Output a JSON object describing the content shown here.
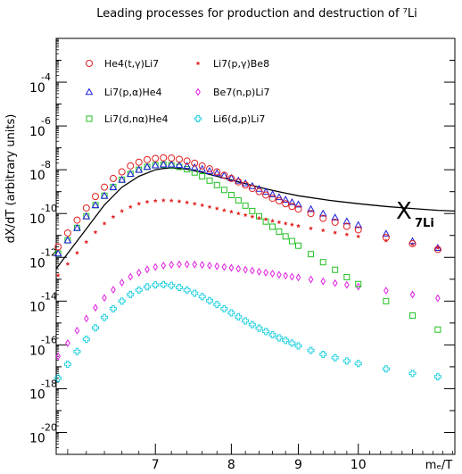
{
  "chart_data": {
    "type": "scatter",
    "title": "Leading processes for production and destruction of ⁷Li",
    "xlabel": "mₑ/T",
    "ylabel": "dX/dT (arbitrary units)",
    "x_scale": "log",
    "y_scale": "log",
    "xlim": [
      5.88,
      11.85
    ],
    "ylim": [
      1e-21,
      0.01
    ],
    "x_ticks": [
      {
        "value": 7,
        "label": "7"
      },
      {
        "value": 8,
        "label": "8"
      },
      {
        "value": 9,
        "label": "9"
      },
      {
        "value": 10,
        "label": "10"
      }
    ],
    "y_ticks": [
      {
        "value": 0.0001,
        "base": "10",
        "exp": "-4"
      },
      {
        "value": 1e-06,
        "base": "10",
        "exp": "-6"
      },
      {
        "value": 1e-08,
        "base": "10",
        "exp": "-8"
      },
      {
        "value": 1e-10,
        "base": "10",
        "exp": "-10"
      },
      {
        "value": 1e-12,
        "base": "10",
        "exp": "-12"
      },
      {
        "value": 1e-14,
        "base": "10",
        "exp": "-14"
      },
      {
        "value": 1e-16,
        "base": "10",
        "exp": "-16"
      },
      {
        "value": 1e-18,
        "base": "10",
        "exp": "-18"
      },
      {
        "value": 1e-20,
        "base": "10",
        "exp": "-20"
      }
    ],
    "grid": false,
    "legend_position": "top",
    "annotation": {
      "main": "X",
      "sub": "7Li"
    },
    "series": [
      {
        "name": "He4(t,γ)Li7",
        "marker": "circle",
        "color": "#e02020",
        "x": [
          5.9,
          6.0,
          6.1,
          6.2,
          6.3,
          6.4,
          6.5,
          6.6,
          6.7,
          6.8,
          6.9,
          7.0,
          7.1,
          7.2,
          7.3,
          7.4,
          7.5,
          7.6,
          7.7,
          7.8,
          7.9,
          8.0,
          8.1,
          8.2,
          8.3,
          8.4,
          8.5,
          8.6,
          8.7,
          8.8,
          8.9,
          9.0,
          9.2,
          9.4,
          9.6,
          9.8,
          10.0,
          10.5,
          11.0,
          11.5
        ],
        "y": [
          3e-12,
          1.3e-11,
          5e-11,
          1.8e-10,
          6e-10,
          1.6e-09,
          4e-09,
          8e-09,
          1.5e-08,
          2.2e-08,
          2.9e-08,
          3.3e-08,
          3.5e-08,
          3.4e-08,
          3e-08,
          2.5e-08,
          2e-08,
          1.5e-08,
          1.1e-08,
          8e-09,
          5.6e-09,
          4e-09,
          2.8e-09,
          2e-09,
          1.4e-09,
          1e-09,
          7e-10,
          5e-10,
          3.8e-10,
          2.8e-10,
          2.1e-10,
          1.6e-10,
          1e-10,
          6e-11,
          4e-11,
          2.6e-11,
          1.8e-11,
          8e-12,
          4.2e-12,
          2.3e-12
        ]
      },
      {
        "name": "Li7(p,γ)Be8",
        "marker": "star",
        "color": "#e02020",
        "x": [
          5.9,
          6.0,
          6.1,
          6.2,
          6.3,
          6.4,
          6.5,
          6.6,
          6.7,
          6.8,
          6.9,
          7.0,
          7.1,
          7.2,
          7.3,
          7.4,
          7.5,
          7.6,
          7.7,
          7.8,
          7.9,
          8.0,
          8.1,
          8.2,
          8.3,
          8.4,
          8.5,
          8.6,
          8.7,
          8.8,
          8.9,
          9.0,
          9.2,
          9.4,
          9.6,
          9.8,
          10.0,
          10.5,
          11.0,
          11.5
        ],
        "y": [
          1.5e-13,
          5e-13,
          1.6e-12,
          5e-12,
          1.4e-11,
          3.5e-11,
          7e-11,
          1.3e-10,
          2e-10,
          2.8e-10,
          3.4e-10,
          3.8e-10,
          4e-10,
          3.9e-10,
          3.6e-10,
          3.2e-10,
          2.8e-10,
          2.4e-10,
          2e-10,
          1.7e-10,
          1.4e-10,
          1.2e-10,
          1e-10,
          8.5e-11,
          7.2e-11,
          6.2e-11,
          5.4e-11,
          4.6e-11,
          4e-11,
          3.5e-11,
          3.1e-11,
          2.7e-11,
          2.1e-11,
          1.7e-11,
          1.35e-11,
          1.1e-11,
          9e-12,
          5.8e-12,
          3.9e-12,
          2.7e-12
        ]
      },
      {
        "name": "Li7(p,α)He4",
        "marker": "triangle",
        "color": "#1a1adc",
        "x": [
          5.9,
          6.0,
          6.1,
          6.2,
          6.3,
          6.4,
          6.5,
          6.6,
          6.7,
          6.8,
          6.9,
          7.0,
          7.1,
          7.2,
          7.3,
          7.4,
          7.5,
          7.6,
          7.7,
          7.8,
          7.9,
          8.0,
          8.1,
          8.2,
          8.3,
          8.4,
          8.5,
          8.6,
          8.7,
          8.8,
          8.9,
          9.0,
          9.2,
          9.4,
          9.6,
          9.8,
          10.0,
          10.5,
          11.0,
          11.5
        ],
        "y": [
          1.5e-12,
          6e-12,
          2.2e-11,
          7.5e-11,
          2.4e-10,
          6.5e-10,
          1.6e-09,
          3.5e-09,
          6.5e-09,
          1e-08,
          1.35e-08,
          1.6e-08,
          1.75e-08,
          1.75e-08,
          1.65e-08,
          1.5e-08,
          1.3e-08,
          1.1e-08,
          8.8e-09,
          7e-09,
          5.5e-09,
          4.2e-09,
          3.2e-09,
          2.4e-09,
          1.8e-09,
          1.35e-09,
          1e-09,
          7.5e-10,
          5.6e-10,
          4.3e-10,
          3.3e-10,
          2.6e-10,
          1.6e-10,
          1e-10,
          6.6e-11,
          4.4e-11,
          3e-11,
          1.2e-11,
          5.5e-12,
          2.7e-12
        ]
      },
      {
        "name": "Be7(n,p)Li7",
        "marker": "diamond",
        "color": "#e020e0",
        "x": [
          5.9,
          6.0,
          6.1,
          6.2,
          6.3,
          6.4,
          6.5,
          6.6,
          6.7,
          6.8,
          6.9,
          7.0,
          7.1,
          7.2,
          7.3,
          7.4,
          7.5,
          7.6,
          7.7,
          7.8,
          7.9,
          8.0,
          8.1,
          8.2,
          8.3,
          8.4,
          8.5,
          8.6,
          8.7,
          8.8,
          8.9,
          9.0,
          9.2,
          9.4,
          9.6,
          9.8,
          10.0,
          10.5,
          11.0,
          11.5
        ],
        "y": [
          3e-17,
          1.2e-16,
          4.5e-16,
          1.6e-15,
          5e-15,
          1.4e-14,
          3.3e-14,
          7e-14,
          1.3e-13,
          2e-13,
          2.8e-13,
          3.6e-13,
          4.2e-13,
          4.6e-13,
          4.8e-13,
          4.8e-13,
          4.7e-13,
          4.5e-13,
          4.2e-13,
          3.9e-13,
          3.6e-13,
          3.3e-13,
          3e-13,
          2.7e-13,
          2.45e-13,
          2.2e-13,
          2e-13,
          1.8e-13,
          1.6e-13,
          1.45e-13,
          1.3e-13,
          1.2e-13,
          9.8e-14,
          8e-14,
          6.6e-14,
          5.5e-14,
          4.6e-14,
          3e-14,
          2e-14,
          1.35e-14
        ]
      },
      {
        "name": "Li7(d,nα)He4",
        "marker": "square",
        "color": "#20c020",
        "x": [
          5.9,
          6.0,
          6.1,
          6.2,
          6.3,
          6.4,
          6.5,
          6.6,
          6.7,
          6.8,
          6.9,
          7.0,
          7.1,
          7.2,
          7.3,
          7.4,
          7.5,
          7.6,
          7.7,
          7.8,
          7.9,
          8.0,
          8.1,
          8.2,
          8.3,
          8.4,
          8.5,
          8.6,
          8.7,
          8.8,
          8.9,
          9.0,
          9.2,
          9.4,
          9.6,
          9.8,
          10.0,
          10.5,
          11.0,
          11.5
        ],
        "y": [
          1.5e-12,
          6e-12,
          2.2e-11,
          7.5e-11,
          2.4e-10,
          6.5e-10,
          1.6e-09,
          3.5e-09,
          6.5e-09,
          1e-08,
          1.35e-08,
          1.6e-08,
          1.7e-08,
          1.6e-08,
          1.35e-08,
          1.05e-08,
          7.5e-09,
          5e-09,
          3.2e-09,
          2e-09,
          1.2e-09,
          7e-10,
          4e-10,
          2.3e-10,
          1.3e-10,
          7.5e-11,
          4.3e-11,
          2.5e-11,
          1.5e-11,
          9e-12,
          5.5e-12,
          3.4e-12,
          1.4e-12,
          6e-13,
          2.7e-13,
          1.25e-13,
          6e-14,
          1e-14,
          2.2e-15,
          5e-16
        ]
      },
      {
        "name": "Li6(d,p)Li7",
        "marker": "cross",
        "color": "#20d0e0",
        "x": [
          5.9,
          6.0,
          6.1,
          6.2,
          6.3,
          6.4,
          6.5,
          6.6,
          6.7,
          6.8,
          6.9,
          7.0,
          7.1,
          7.2,
          7.3,
          7.4,
          7.5,
          7.6,
          7.7,
          7.8,
          7.9,
          8.0,
          8.1,
          8.2,
          8.3,
          8.4,
          8.5,
          8.6,
          8.7,
          8.8,
          8.9,
          9.0,
          9.2,
          9.4,
          9.6,
          9.8,
          10.0,
          10.5,
          11.0,
          11.5
        ],
        "y": [
          3e-18,
          1.3e-17,
          5e-17,
          1.8e-16,
          6e-16,
          1.8e-15,
          4.5e-15,
          1e-14,
          2e-14,
          3.2e-14,
          4.5e-14,
          5.5e-14,
          5.7e-14,
          5.2e-14,
          4.2e-14,
          3.2e-14,
          2.3e-14,
          1.6e-14,
          1.05e-14,
          7e-15,
          4.5e-15,
          2.9e-15,
          1.9e-15,
          1.25e-15,
          8.5e-16,
          5.8e-16,
          4.1e-16,
          2.9e-16,
          2.1e-16,
          1.6e-16,
          1.2e-16,
          9e-17,
          5.6e-17,
          3.7e-17,
          2.6e-17,
          1.85e-17,
          1.4e-17,
          8e-18,
          5e-18,
          3.5e-18
        ]
      }
    ],
    "curve": {
      "name": "X_7Li",
      "x": [
        5.88,
        6.0,
        6.2,
        6.4,
        6.6,
        6.8,
        7.0,
        7.1,
        7.2,
        7.3,
        7.4,
        7.6,
        7.8,
        8.0,
        8.2,
        8.4,
        8.6,
        8.8,
        9.0,
        9.5,
        10.0,
        10.5,
        11.0,
        11.5,
        11.85
      ],
      "y": [
        3e-13,
        1.5e-12,
        2e-11,
        2.5e-10,
        1.6e-09,
        5e-09,
        1e-08,
        1.15e-08,
        1.2e-08,
        1.15e-08,
        1.05e-08,
        7.5e-09,
        5e-09,
        3.4e-09,
        2.3e-09,
        1.6e-09,
        1.15e-09,
        8.5e-10,
        6.5e-10,
        4e-10,
        2.8e-10,
        2.1e-10,
        1.7e-10,
        1.4e-10,
        1.3e-10
      ]
    }
  }
}
